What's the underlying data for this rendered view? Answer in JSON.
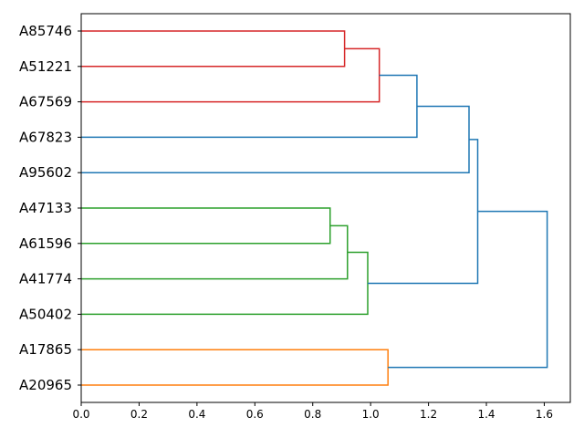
{
  "chart_data": {
    "type": "dendrogram",
    "orientation": "horizontal",
    "title": "",
    "xlabel": "",
    "ylabel": "",
    "xlim": [
      0,
      1.69
    ],
    "xticks": [
      0.0,
      0.2,
      0.4,
      0.6,
      0.8,
      1.0,
      1.2,
      1.4,
      1.6
    ],
    "xtick_labels": [
      "0.0",
      "0.2",
      "0.4",
      "0.6",
      "0.8",
      "1.0",
      "1.2",
      "1.4",
      "1.6"
    ],
    "leaves": [
      "A85746",
      "A51221",
      "A67569",
      "A67823",
      "A95602",
      "A47133",
      "A61596",
      "A41774",
      "A50402",
      "A17865",
      "A20965"
    ],
    "grid": false,
    "colors": {
      "red": "#d62728",
      "blue": "#1f77b4",
      "green": "#2ca02c",
      "orange": "#ff7f0e"
    },
    "links": [
      {
        "left": "A85746",
        "right": "A51221",
        "height": 0.91,
        "color": "red"
      },
      {
        "left": "c0",
        "right": "A67569",
        "height": 1.03,
        "color": "red"
      },
      {
        "left": "c1",
        "right": "A67823",
        "height": 1.16,
        "color": "blue"
      },
      {
        "left": "c2",
        "right": "A95602",
        "height": 1.34,
        "color": "blue"
      },
      {
        "left": "A47133",
        "right": "A61596",
        "height": 0.86,
        "color": "green"
      },
      {
        "left": "c4",
        "right": "A41774",
        "height": 0.92,
        "color": "green"
      },
      {
        "left": "c5",
        "right": "A50402",
        "height": 0.99,
        "color": "green"
      },
      {
        "left": "c3",
        "right": "c6",
        "height": 1.37,
        "color": "blue"
      },
      {
        "left": "A17865",
        "right": "A20965",
        "height": 1.06,
        "color": "orange"
      },
      {
        "left": "c7",
        "right": "c8",
        "height": 1.61,
        "color": "blue"
      }
    ]
  }
}
